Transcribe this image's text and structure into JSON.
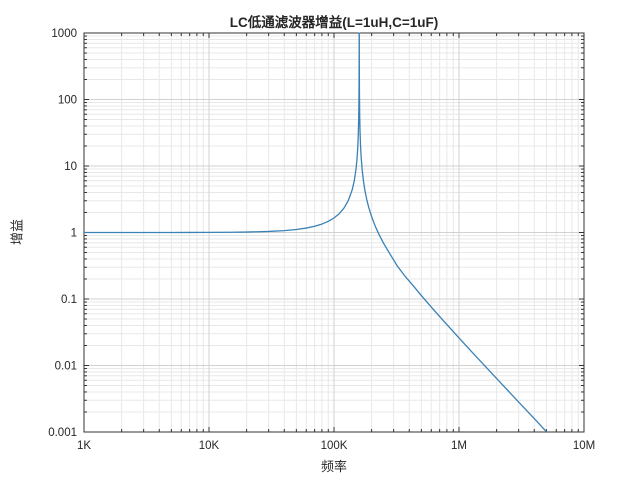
{
  "chart_data": {
    "type": "line",
    "title": "LC低通滤波器增益(L=1uH,C=1uF)",
    "xlabel": "频率",
    "ylabel": "增益",
    "xscale": "log",
    "yscale": "log",
    "xlim": [
      1000,
      10000000
    ],
    "ylim": [
      0.001,
      1000
    ],
    "x_ticks": [
      {
        "value": 1000,
        "label": "1K"
      },
      {
        "value": 10000,
        "label": "10K"
      },
      {
        "value": 100000,
        "label": "100K"
      },
      {
        "value": 1000000,
        "label": "1M"
      },
      {
        "value": 10000000,
        "label": "10M"
      }
    ],
    "y_ticks": [
      {
        "value": 1000,
        "label": "1000"
      },
      {
        "value": 100,
        "label": "100"
      },
      {
        "value": 10,
        "label": "10"
      },
      {
        "value": 1,
        "label": "1"
      },
      {
        "value": 0.1,
        "label": "0.1"
      },
      {
        "value": 0.01,
        "label": "0.01"
      },
      {
        "value": 0.001,
        "label": "0.001"
      }
    ],
    "grid": "major+minor",
    "legend": "none",
    "colors": {
      "line": "#3a81b5",
      "axis": "#333333",
      "grid_major": "#d2d2d2",
      "grid_minor": "#e8e8e8",
      "text": "#262626",
      "background": "#ffffff"
    },
    "series": [
      {
        "name": "gain",
        "points": [
          [
            1000,
            1.0
          ],
          [
            2000,
            1.0002
          ],
          [
            3000,
            1.0004
          ],
          [
            5000,
            1.001
          ],
          [
            7000,
            1.0019
          ],
          [
            10000,
            1.004
          ],
          [
            15000,
            1.0089
          ],
          [
            20000,
            1.016
          ],
          [
            30000,
            1.0368
          ],
          [
            40000,
            1.0674
          ],
          [
            50000,
            1.1095
          ],
          [
            60000,
            1.1656
          ],
          [
            70000,
            1.2399
          ],
          [
            80000,
            1.3388
          ],
          [
            90000,
            1.4722
          ],
          [
            100000,
            1.6524
          ],
          [
            110000,
            1.9146
          ],
          [
            120000,
            2.318
          ],
          [
            130000,
            3.005
          ],
          [
            140000,
            4.42
          ],
          [
            145000,
            5.885
          ],
          [
            150000,
            8.953
          ],
          [
            153000,
            13.19
          ],
          [
            155000,
            19.42
          ],
          [
            156500,
            30.23
          ],
          [
            157500,
            48.2
          ],
          [
            158200,
            83.8
          ],
          [
            158700,
            175.5
          ],
          [
            159000,
            514
          ],
          [
            159155,
            50000
          ],
          [
            159400,
            324.7
          ],
          [
            159800,
            123.2
          ],
          [
            160500,
            58.9
          ],
          [
            161500,
            33.7
          ],
          [
            163000,
            20.4
          ],
          [
            165000,
            13.36
          ],
          [
            168000,
            8.75
          ],
          [
            172000,
            5.955
          ],
          [
            177000,
            4.222
          ],
          [
            183000,
            3.105
          ],
          [
            190000,
            2.352
          ],
          [
            200000,
            1.727
          ],
          [
            215000,
            1.2122
          ],
          [
            230000,
            0.9188
          ],
          [
            250000,
            0.6815
          ],
          [
            280000,
            0.4775
          ],
          [
            320000,
            0.316
          ],
          [
            370000,
            0.22
          ],
          [
            430000,
            0.1587
          ],
          [
            500000,
            0.1127
          ],
          [
            600000,
            0.0757
          ],
          [
            750000,
            0.0471
          ],
          [
            1000000,
            0.02599
          ],
          [
            1300000,
            0.0152
          ],
          [
            1700000,
            0.00885
          ],
          [
            2200000,
            0.00526
          ],
          [
            3000000,
            0.00282
          ],
          [
            4000000,
            0.00159
          ],
          [
            5000000,
            0.00101
          ]
        ]
      }
    ]
  }
}
